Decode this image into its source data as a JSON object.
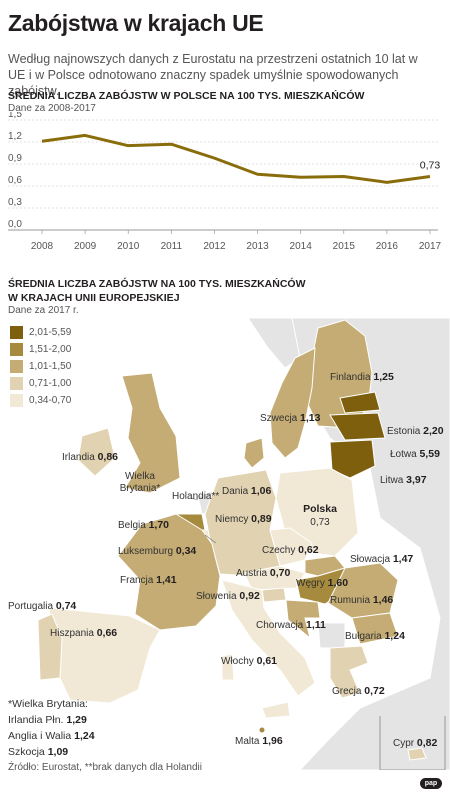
{
  "header": {
    "title": "Zabójstwa w krajach UE",
    "intro": "Według najnowszych danych z Eurostatu na przestrzeni ostatnich 10 lat w UE i w Polsce odnotowano znaczny spadek umyślnie spowodowanych zabójstw."
  },
  "chart_data": [
    {
      "type": "line",
      "title": "ŚREDNIA LICZBA ZABÓJSTW W POLSCE NA 100 TYS. MIESZKAŃCÓW",
      "subtitle": "Dane za 2008-2017",
      "x": [
        "2008",
        "2009",
        "2010",
        "2011",
        "2012",
        "2013",
        "2014",
        "2015",
        "2016",
        "2017"
      ],
      "series": [
        {
          "values": [
            1.21,
            1.29,
            1.15,
            1.17,
            0.98,
            0.76,
            0.72,
            0.73,
            0.65,
            0.73
          ]
        }
      ],
      "ylim": [
        0,
        1.5
      ],
      "yticks": [
        "0,0",
        "0,3",
        "0,6",
        "0,9",
        "1,2",
        "1,5"
      ],
      "annotation": "0,73",
      "color": "#8a6d0b",
      "grid": true
    },
    {
      "type": "choropleth",
      "title": "ŚREDNIA LICZBA ZABÓJSTW NA 100 TYS. MIESZKAŃCÓW W KRAJACH UNII EUROPEJSKIEJ",
      "subtitle": "Dane za 2017 r.",
      "legend": [
        {
          "label": "2,01-5,59",
          "color": "#7d5f0e"
        },
        {
          "label": "1,51-2,00",
          "color": "#a68a3d"
        },
        {
          "label": "1,01-1,50",
          "color": "#c4ac74"
        },
        {
          "label": "0,71-1,00",
          "color": "#e1d2b1"
        },
        {
          "label": "0,34-0,70",
          "color": "#f1e8d6"
        }
      ],
      "countries": [
        {
          "name": "Finlandia",
          "value": "1,25"
        },
        {
          "name": "Szwecja",
          "value": "1,13"
        },
        {
          "name": "Estonia",
          "value": "2,20"
        },
        {
          "name": "Łotwa",
          "value": "5,59"
        },
        {
          "name": "Litwa",
          "value": "3,97"
        },
        {
          "name": "Irlandia",
          "value": "0,86"
        },
        {
          "name": "Wielka Brytania*",
          "value": ""
        },
        {
          "name": "Dania",
          "value": "1,06"
        },
        {
          "name": "Holandia**",
          "value": ""
        },
        {
          "name": "Belgia",
          "value": "1,70"
        },
        {
          "name": "Niemcy",
          "value": "0,89"
        },
        {
          "name": "Polska",
          "value": "0,73"
        },
        {
          "name": "Luksemburg",
          "value": "0,34"
        },
        {
          "name": "Czechy",
          "value": "0,62"
        },
        {
          "name": "Słowacja",
          "value": "1,47"
        },
        {
          "name": "Austria",
          "value": "0,70"
        },
        {
          "name": "Węgry",
          "value": "1,60"
        },
        {
          "name": "Francja",
          "value": "1,41"
        },
        {
          "name": "Słowenia",
          "value": "0,92"
        },
        {
          "name": "Rumunia",
          "value": "1,46"
        },
        {
          "name": "Portugalia",
          "value": "0,74"
        },
        {
          "name": "Chorwacja",
          "value": "1,11"
        },
        {
          "name": "Hiszpania",
          "value": "0,66"
        },
        {
          "name": "Bułgaria",
          "value": "1,24"
        },
        {
          "name": "Włochy",
          "value": "0,61"
        },
        {
          "name": "Grecja",
          "value": "0,72"
        },
        {
          "name": "Malta",
          "value": "1,96"
        },
        {
          "name": "Cypr",
          "value": "0,82"
        }
      ]
    }
  ],
  "footnote": {
    "uk_title": "*Wielka Brytania:",
    "uk_rows": [
      {
        "label": "Irlandia Płn.",
        "value": "1,29"
      },
      {
        "label": "Anglia i Walia",
        "value": "1,24"
      },
      {
        "label": "Szkocja",
        "value": "1,09"
      }
    ]
  },
  "source": "Źródło: Eurostat, **brak danych dla Holandii",
  "logo": "pap"
}
